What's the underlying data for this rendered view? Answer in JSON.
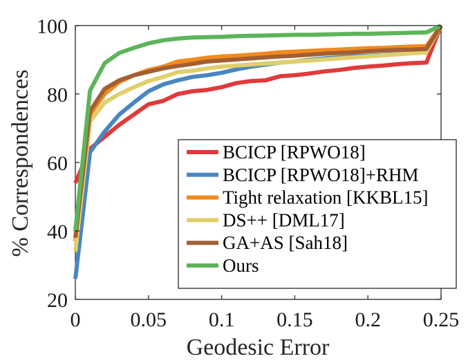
{
  "chart_data": {
    "type": "line",
    "xlabel": "Geodesic Error",
    "ylabel": "% Correspondences",
    "xlim": [
      0,
      0.25
    ],
    "ylim": [
      20,
      100
    ],
    "xticks": [
      0,
      0.05,
      0.1,
      0.15,
      0.2,
      0.25
    ],
    "xtick_labels": [
      "0",
      "0.05",
      "0.1",
      "0.15",
      "0.2",
      "0.25"
    ],
    "yticks": [
      20,
      40,
      60,
      80,
      100
    ],
    "ytick_labels": [
      "20",
      "40",
      "60",
      "80",
      "100"
    ],
    "grid": false,
    "legend_position": "bottom-right",
    "x": [
      0,
      0.01,
      0.02,
      0.03,
      0.04,
      0.05,
      0.06,
      0.07,
      0.08,
      0.09,
      0.1,
      0.11,
      0.12,
      0.13,
      0.14,
      0.15,
      0.16,
      0.17,
      0.18,
      0.19,
      0.2,
      0.21,
      0.22,
      0.23,
      0.24,
      0.25
    ],
    "series": [
      {
        "name": "BCICP [RPWO18]",
        "color": "#e03a3a",
        "values": [
          54,
          64,
          67.5,
          71,
          74,
          77,
          78,
          80,
          80.8,
          81.2,
          82,
          83.2,
          83.8,
          84,
          85.2,
          85.5,
          86,
          86.6,
          87,
          87.6,
          88,
          88.3,
          88.7,
          89,
          89.2,
          100
        ]
      },
      {
        "name": "BCICP [RPWO18]+RHM",
        "color": "#4a86c0",
        "values": [
          26,
          63,
          69,
          74,
          77.5,
          80.8,
          82.8,
          84,
          85,
          85.5,
          86.2,
          87.2,
          88,
          88.6,
          89.2,
          89.5,
          90,
          90.4,
          90.7,
          91,
          91.2,
          91.4,
          91.7,
          92,
          92.2,
          100
        ]
      },
      {
        "name": "Tight relaxation [KKBL15]",
        "color": "#f28a1e",
        "values": [
          37,
          74,
          80,
          83.5,
          85.5,
          87,
          88,
          89.5,
          90,
          90.6,
          91,
          91.2,
          91.5,
          91.8,
          92.2,
          92.4,
          92.6,
          92.8,
          93,
          93.2,
          93.4,
          93.5,
          93.7,
          93.9,
          94,
          100
        ]
      },
      {
        "name": "DS++ [DML17]",
        "color": "#e0cf6a",
        "values": [
          34,
          72,
          77.5,
          80,
          82,
          83.8,
          85,
          86.4,
          86.8,
          87.5,
          88,
          88.3,
          88.6,
          88.9,
          89.2,
          89.5,
          89.8,
          90.1,
          90.4,
          90.7,
          91,
          91.3,
          91.6,
          91.9,
          92.2,
          100
        ]
      },
      {
        "name": "GA+AS [Sah18]",
        "color": "#a35f34",
        "values": [
          38,
          75,
          81.5,
          84,
          85.5,
          86.5,
          87.5,
          88.2,
          88.8,
          89.5,
          89.8,
          90.1,
          90.4,
          90.7,
          91,
          91.2,
          91.5,
          91.8,
          92,
          92.2,
          92.5,
          92.7,
          92.9,
          93,
          93.2,
          100
        ]
      },
      {
        "name": "Ours",
        "color": "#5cb55a",
        "values": [
          40,
          81,
          89,
          92,
          93.5,
          94.8,
          95.7,
          96.2,
          96.5,
          96.6,
          96.7,
          96.9,
          97,
          97.1,
          97.2,
          97.3,
          97.3,
          97.4,
          97.5,
          97.6,
          97.6,
          97.7,
          97.8,
          97.9,
          98,
          100
        ]
      }
    ]
  }
}
